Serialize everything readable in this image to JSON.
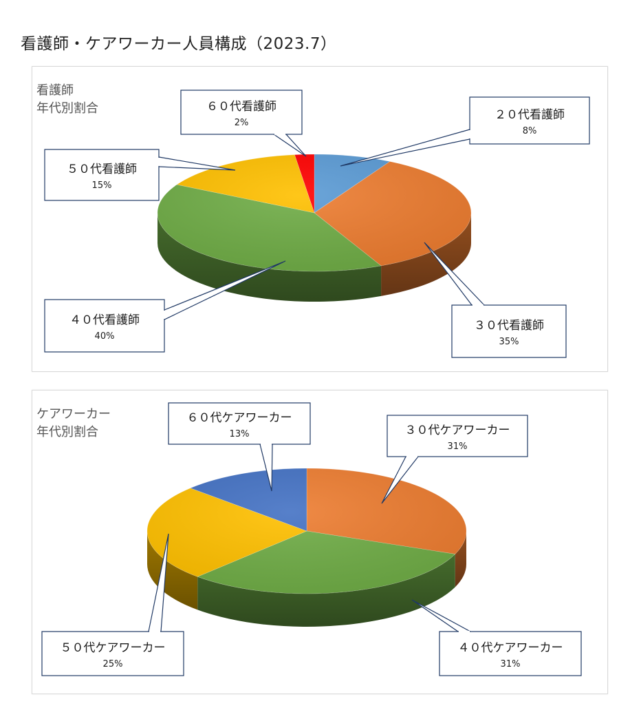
{
  "page_title": "看護師・ケアワーカー人員構成（2023.7）",
  "chart_data": [
    {
      "type": "pie",
      "title_lines": [
        "看護師",
        "年代別割合"
      ],
      "start_angle": 0,
      "slices": [
        {
          "label": "２０代看護師",
          "value": 8,
          "display": "8%",
          "color": "#5b9bd5"
        },
        {
          "label": "３０代看護師",
          "value": 35,
          "display": "35%",
          "color": "#ed7d31"
        },
        {
          "label": "４０代看護師",
          "value": 40,
          "display": "40%",
          "color": "#70ad47"
        },
        {
          "label": "５０代看護師",
          "value": 15,
          "display": "15%",
          "color": "#ffc000"
        },
        {
          "label": "６０代看護師",
          "value": 2,
          "display": "2%",
          "color": "#ff0000"
        }
      ]
    },
    {
      "type": "pie",
      "title_lines": [
        "ケアワーカー",
        "年代別割合"
      ],
      "start_angle": 0,
      "slices": [
        {
          "label": "３０代ケアワーカー",
          "value": 31,
          "display": "31%",
          "color": "#ed7d31"
        },
        {
          "label": "４０代ケアワーカー",
          "value": 31,
          "display": "31%",
          "color": "#70ad47"
        },
        {
          "label": "５０代ケアワーカー",
          "value": 25,
          "display": "25%",
          "color": "#ffc000"
        },
        {
          "label": "６０代ケアワーカー",
          "value": 13,
          "display": "13%",
          "color": "#4472c4"
        }
      ]
    }
  ]
}
